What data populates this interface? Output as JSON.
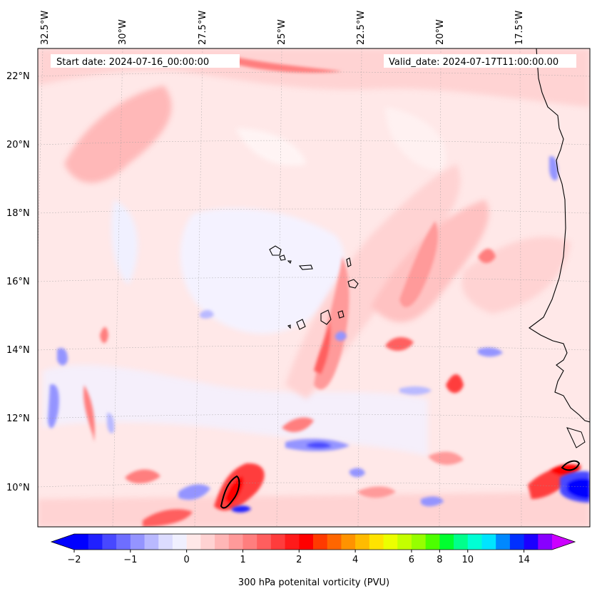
{
  "map": {
    "start_date": "Start date: 2024-07-16_00:00:00",
    "valid_date": "Valid_date: 2024-07-17T11:00:00.00",
    "lon_labels": [
      "32.5°W",
      "30°W",
      "27.5°W",
      "25°W",
      "22.5°W",
      "20°W",
      "17.5°W"
    ],
    "lat_labels": [
      "22°N",
      "20°N",
      "18°N",
      "16°N",
      "14°N",
      "12°N",
      "10°N"
    ],
    "field": "300 hPa potential vorticity",
    "projection": "Lambert-style conic, grid lines dashed",
    "colormap_note": "blue = negative PV, white/pink near zero, red = positive PV"
  },
  "colorbar": {
    "label": "300 hPa potenital vorticity (PVU)",
    "tick_labels": [
      "−2",
      "−1",
      "0",
      "1",
      "2",
      "4",
      "6",
      "8",
      "10",
      "14"
    ],
    "levels": [
      -2,
      -1.75,
      -1.5,
      -1.25,
      -1,
      -0.75,
      -0.5,
      -0.25,
      0,
      0.25,
      0.5,
      0.75,
      1,
      1.25,
      1.5,
      1.75,
      2,
      2.5,
      3,
      3.5,
      4,
      4.5,
      5,
      5.5,
      6,
      7,
      8,
      9,
      10,
      11,
      12,
      13,
      14,
      15,
      16
    ],
    "colors": [
      "#0000ff",
      "#2020ff",
      "#4848ff",
      "#6e6eff",
      "#9494ff",
      "#b9b9ff",
      "#dcdcff",
      "#f0f0ff",
      "#ffe8e8",
      "#ffd2d2",
      "#ffb6b6",
      "#ff9a9a",
      "#ff7e7e",
      "#ff5e5e",
      "#ff3c3c",
      "#ff1a1a",
      "#ff0000",
      "#ff3a00",
      "#ff6600",
      "#ff9300",
      "#ffbb00",
      "#ffe300",
      "#ecff00",
      "#c4ff00",
      "#96ff00",
      "#4cff00",
      "#00ff30",
      "#00ff8c",
      "#00ffd4",
      "#00e4ff",
      "#0088ff",
      "#0030ff",
      "#1c00ff",
      "#8800ff"
    ],
    "extend_low_color": "#0000ff",
    "extend_high_color": "#cc00ff"
  }
}
